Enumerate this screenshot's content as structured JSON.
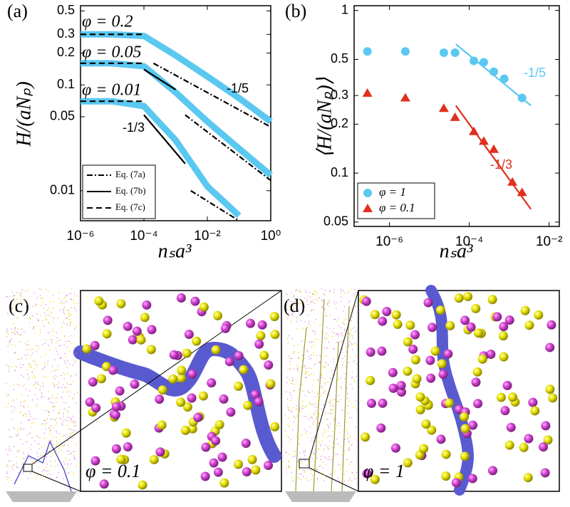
{
  "chart_data": [
    {
      "type": "line",
      "panel_label": "(a)",
      "xlabel": "nₛa³",
      "ylabel": "H/(aNₚ)",
      "xlog": true,
      "ylog": true,
      "xlim": [
        1e-06,
        1
      ],
      "ylim": [
        0.0052,
        0.56
      ],
      "xticks": [
        {
          "value": 1e-06,
          "label": "10⁻⁶"
        },
        {
          "value": 0.0001,
          "label": "10⁻⁴"
        },
        {
          "value": 0.01,
          "label": "10⁻²"
        },
        {
          "value": 1,
          "label": "10⁰"
        }
      ],
      "yticks": [
        0.01,
        0.05,
        0.1,
        0.2,
        0.3,
        0.5
      ],
      "legend": "lower left",
      "series": [
        {
          "color": "#5bc8f0",
          "style": "thick",
          "x": [
            1e-06,
            1e-05,
            0.0001,
            0.001,
            0.01,
            0.1,
            1
          ],
          "values": [
            0.3,
            0.3,
            0.29,
            0.19,
            0.12,
            0.075,
            0.045
          ]
        },
        {
          "color": "#5bc8f0",
          "style": "thick",
          "x": [
            1e-06,
            1e-05,
            0.0001,
            0.001,
            0.01,
            0.1,
            1
          ],
          "values": [
            0.16,
            0.16,
            0.15,
            0.085,
            0.045,
            0.025,
            0.014
          ]
        },
        {
          "color": "#5bc8f0",
          "style": "thick",
          "x": [
            1e-06,
            1e-05,
            0.0001,
            0.001,
            0.01,
            0.1
          ],
          "values": [
            0.07,
            0.07,
            0.063,
            0.03,
            0.011,
            0.0058
          ]
        },
        {
          "name": "Eq. (7a)",
          "color": "#000000",
          "style": "dashdot",
          "x": [
            0.0002,
            1,
            null,
            0.002,
            1,
            null,
            0.003,
            0.1
          ],
          "values": [
            0.16,
            0.04,
            null,
            0.052,
            0.0125,
            null,
            0.01,
            0.0052
          ]
        },
        {
          "name": "Eq. (7b)",
          "color": "#000000",
          "style": "solid",
          "x": [
            0.0001,
            0.001,
            null,
            0.0001,
            0.002
          ],
          "values": [
            0.14,
            0.09,
            null,
            0.052,
            0.018
          ]
        },
        {
          "name": "Eq. (7c)",
          "color": "#000000",
          "style": "dashed",
          "x": [
            1e-06,
            0.0001,
            null,
            1e-06,
            0.0001,
            null,
            1e-06,
            0.0001
          ],
          "values": [
            0.3,
            0.3,
            null,
            0.16,
            0.16,
            null,
            0.07,
            0.07
          ]
        }
      ],
      "annotations": [
        {
          "text": "φ = 0.2"
        },
        {
          "text": "φ = 0.05"
        },
        {
          "text": "φ = 0.01"
        },
        {
          "text": "-1/5"
        },
        {
          "text": "-1/3"
        }
      ]
    },
    {
      "type": "scatter",
      "panel_label": "(b)",
      "xlabel": "nₛa³",
      "ylabel": "⟨H/(aNₚ)⟩",
      "xlog": true,
      "ylog": true,
      "xlim": [
        1.3e-07,
        0.018
      ],
      "ylim": [
        0.047,
        1.07
      ],
      "xticks": [
        {
          "value": 1e-06,
          "label": "10⁻⁶"
        },
        {
          "value": 0.0001,
          "label": "10⁻⁴"
        },
        {
          "value": 0.01,
          "label": "10⁻²"
        }
      ],
      "yticks": [
        0.05,
        0.1,
        0.2,
        0.3,
        0.5,
        1
      ],
      "legend": "lower left",
      "series": [
        {
          "name": "φ = 1",
          "color": "#5bc8f0",
          "marker": "circle",
          "x": [
            2.8e-07,
            2.5e-06,
            2.3e-05,
            4.4e-05,
            0.00013,
            0.00023,
            0.00041,
            0.00075,
            0.0021
          ],
          "values": [
            0.56,
            0.56,
            0.55,
            0.55,
            0.49,
            0.48,
            0.42,
            0.38,
            0.29
          ]
        },
        {
          "name": "φ = 0.1",
          "color": "#e0301e",
          "marker": "triangle",
          "x": [
            2.8e-07,
            2.5e-06,
            2.3e-05,
            4.4e-05,
            0.00013,
            0.00023,
            0.00041,
            0.0012,
            0.0021
          ],
          "values": [
            0.31,
            0.29,
            0.25,
            0.22,
            0.18,
            0.157,
            0.14,
            0.088,
            0.076
          ]
        },
        {
          "color": "#5bc8f0",
          "style": "solid",
          "x": [
            4.6e-05,
            0.0035
          ],
          "values": [
            0.62,
            0.26
          ]
        },
        {
          "color": "#e0301e",
          "style": "solid",
          "x": [
            4.6e-05,
            0.0035
          ],
          "values": [
            0.26,
            0.06
          ]
        }
      ],
      "annotations": [
        {
          "text": "-1/5",
          "color": "#5bc8f0"
        },
        {
          "text": "-1/3",
          "color": "#e0301e"
        }
      ]
    }
  ],
  "panels": [
    {
      "label": "(c)",
      "annotation": "φ = 0.1"
    },
    {
      "label": "(d)",
      "annotation": "φ = 1"
    }
  ]
}
